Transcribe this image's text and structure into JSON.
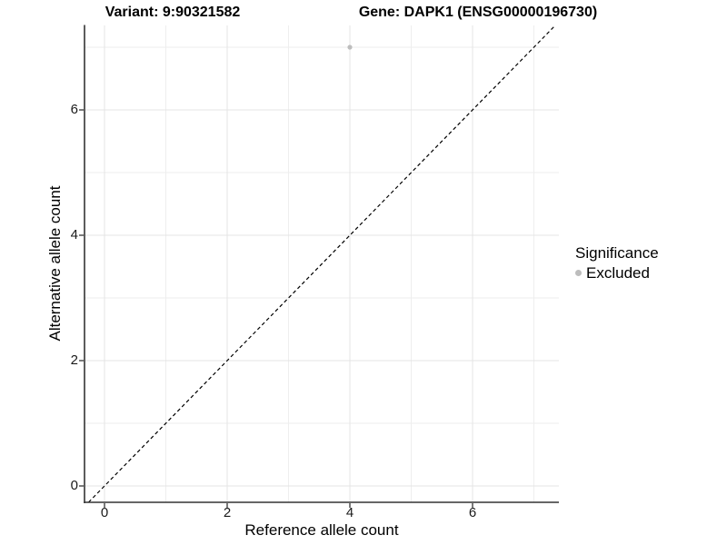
{
  "title": {
    "left": "Variant: 9:90321582",
    "right": "Gene: DAPK1 (ENSG00000196730)"
  },
  "axes": {
    "x_label": "Reference allele count",
    "y_label": "Alternative allele count"
  },
  "legend": {
    "title": "Significance",
    "items": [
      {
        "label": "Excluded",
        "color": "#bdbdbd"
      }
    ]
  },
  "chart_data": {
    "type": "scatter",
    "title": "Variant: 9:90321582 | Gene: DAPK1 (ENSG00000196730)",
    "xlabel": "Reference allele count",
    "ylabel": "Alternative allele count",
    "x_ticks": [
      0,
      2,
      4,
      6
    ],
    "y_ticks": [
      0,
      2,
      4,
      6
    ],
    "x_minor_ticks": [
      1,
      3,
      5,
      7
    ],
    "y_minor_ticks": [
      1,
      3,
      5,
      7
    ],
    "xlim": [
      -0.35,
      7.41
    ],
    "ylim": [
      -0.26,
      7.35
    ],
    "grid": "major and minor, light gray on white",
    "legend_position": "right",
    "reference_line": {
      "slope": 1,
      "intercept": 0,
      "style": "dashed",
      "color": "#000000"
    },
    "series": [
      {
        "name": "Excluded",
        "color": "#bdbdbd",
        "points": [
          {
            "x": 4,
            "y": 7
          }
        ]
      }
    ]
  },
  "theme": {
    "background": "#ffffff",
    "grid_major": "#e4e4e4",
    "grid_minor": "#eeeeee",
    "axis_line": "#333333",
    "tick_mark": "#333333",
    "tick_text": "#1a1a1a",
    "point": "#bdbdbd",
    "dashed_line": "#000000"
  }
}
